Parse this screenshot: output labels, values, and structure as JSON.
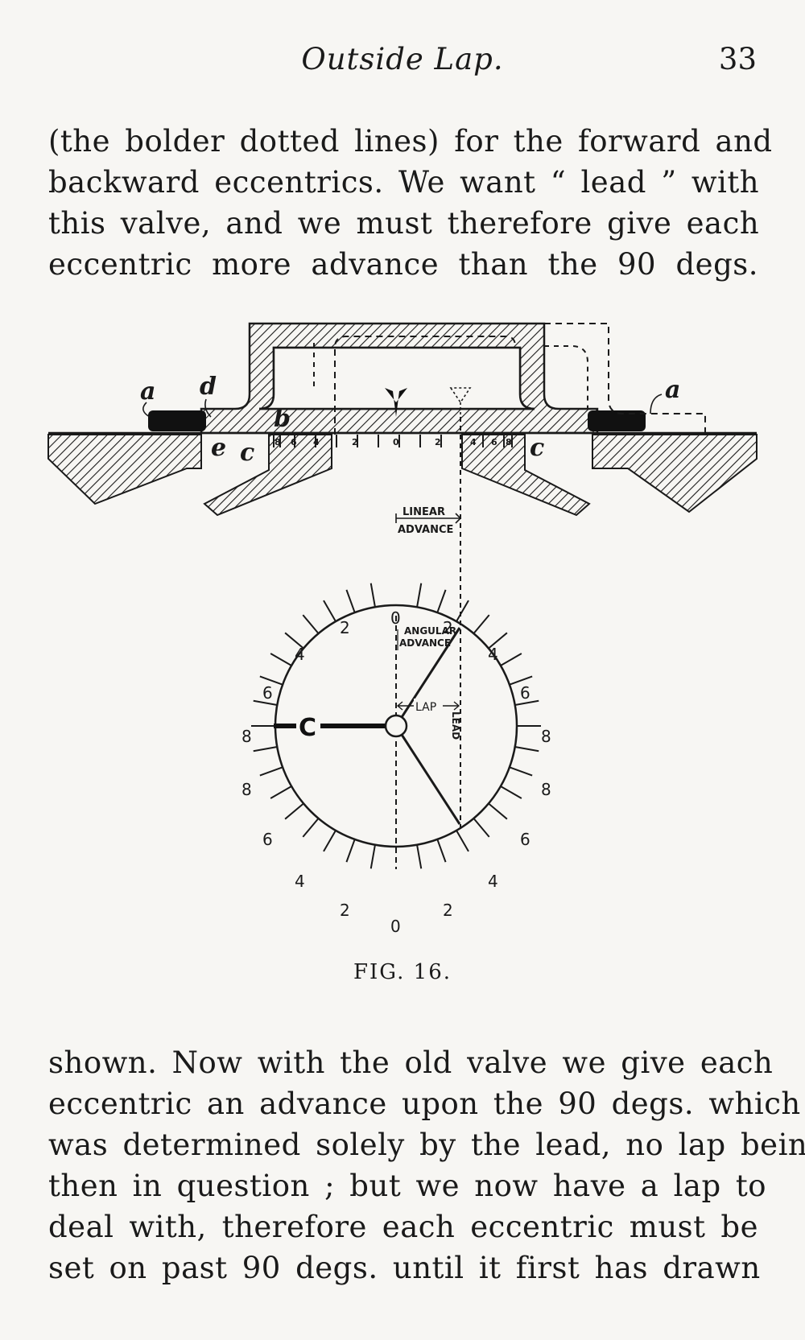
{
  "header": {
    "running_head": "Outside Lap.",
    "page_number": "33"
  },
  "paragraphs": {
    "top": [
      "(the bolder dotted lines) for the forward and",
      "backward eccentrics. We want “ lead ” with",
      "this valve, and we must therefore give each",
      "eccentric more advance than the 90 degs."
    ],
    "bottom": [
      "shown. Now with the old valve we give each",
      "eccentric an advance upon the 90 degs. which",
      "was determined solely by the lead, no lap being",
      "then in question ; but we now have a lap to",
      "deal with, therefore each eccentric must be",
      "set on past 90 degs. until it first has drawn"
    ]
  },
  "figure": {
    "labels": {
      "a_left": "a",
      "d": "d",
      "b": "b",
      "e": "e",
      "c_left": "c",
      "c_right": "c",
      "a_right": "a",
      "linear": "LINEAR",
      "advance": "ADVANCE",
      "angular": "ANGULAR",
      "angular_advance": "ADVANCE",
      "lap": "LAP",
      "lead": "LEAD",
      "crank": "C"
    },
    "scale_labels": [
      "8",
      "6",
      "4",
      "2",
      "0",
      "2",
      "4",
      "6",
      "8"
    ],
    "dial_labels": {
      "top_0": "0",
      "top_left_2": "2",
      "top_right_2": "2",
      "left_4": "4",
      "right_4": "4",
      "left_6": "6",
      "right_6": "6",
      "left_8a": "8",
      "right_8a": "8",
      "left_8b": "8",
      "right_8b": "8",
      "lower_left_6": "6",
      "lower_right_6": "6",
      "lower_left_4": "4",
      "lower_right_4": "4",
      "bottom_left_2": "2",
      "bottom_right_2": "2",
      "bottom_0": "0"
    },
    "caption": "FIG. 16."
  }
}
